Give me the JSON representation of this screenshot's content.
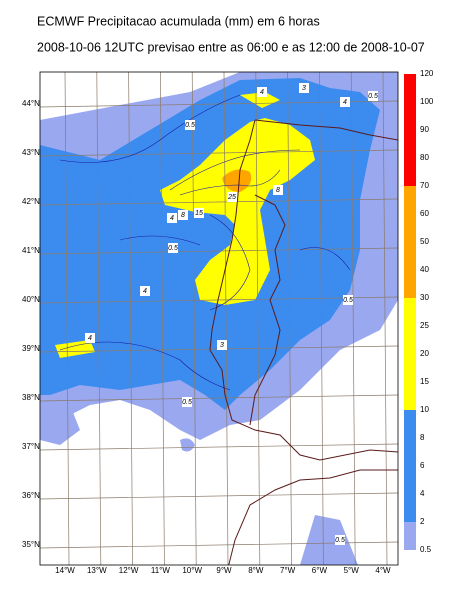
{
  "header": {
    "title": "ECMWF Precipitacao acumulada (mm) em 6 horas",
    "subtitle": "2008-10-06 12UTC previsao entre as 06:00 e as 12:00 de 2008-10-07"
  },
  "map": {
    "lat_labels": [
      "44°N",
      "43°N",
      "42°N",
      "41°N",
      "40°N",
      "39°N",
      "38°N",
      "37°N",
      "36°N",
      "35°N"
    ],
    "lon_labels": [
      "14°W",
      "13°W",
      "12°W",
      "11°W",
      "10°W",
      "9°W",
      "8°W",
      "7°W",
      "6°W",
      "5°W",
      "4°W"
    ],
    "contour_labels": [
      "4",
      "3",
      "4",
      "0.5",
      "0.5",
      "8",
      "4",
      "15",
      "25",
      "8",
      "0.5",
      "4",
      "0.5",
      "4",
      "3",
      "0.5",
      "0.5"
    ]
  },
  "colorbar": {
    "levels": [
      "120",
      "100",
      "90",
      "80",
      "70",
      "60",
      "50",
      "40",
      "30",
      "25",
      "20",
      "15",
      "10",
      "8",
      "6",
      "4",
      "2",
      "0.5"
    ],
    "colors": [
      "#ff0000",
      "#ff0000",
      "#ff0000",
      "#ff0000",
      "#ffa500",
      "#ffa500",
      "#ffa500",
      "#ffa500",
      "#ffff00",
      "#ffff00",
      "#ffff00",
      "#ffff00",
      "#3c8cf0",
      "#3c8cf0",
      "#3c8cf0",
      "#3c8cf0",
      "#9aa8f0"
    ]
  }
}
